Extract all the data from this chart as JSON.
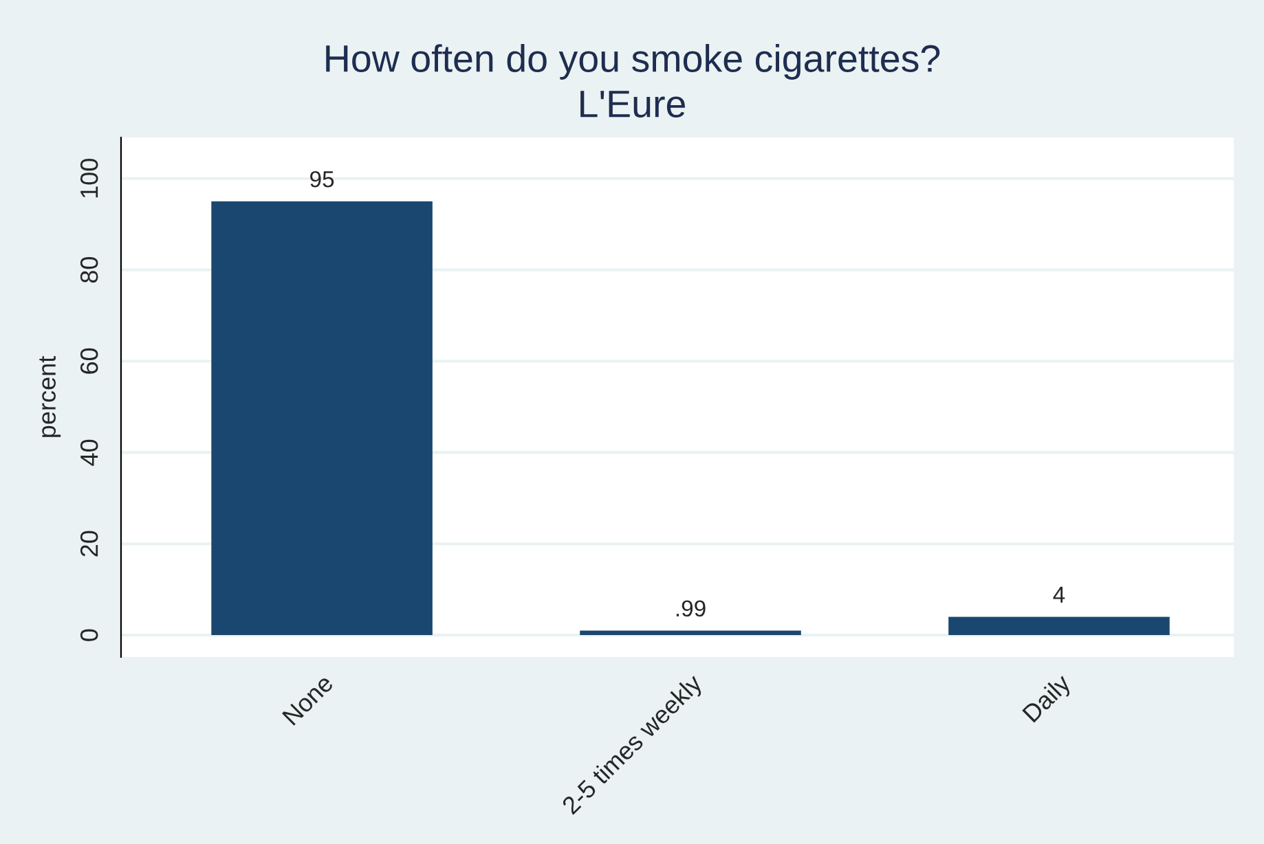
{
  "chart_data": {
    "type": "bar",
    "title": "How often do you smoke cigarettes?",
    "subtitle": "L'Eure",
    "ylabel": "percent",
    "categories": [
      "None",
      "2-5 times weekly",
      "Daily"
    ],
    "values": [
      95,
      0.99,
      4
    ],
    "value_labels": [
      "95",
      ".99",
      "4"
    ],
    "color": "#1a476f",
    "ylim": [
      -4.8,
      109
    ],
    "yticks": [
      0,
      20,
      40,
      60,
      80,
      100
    ],
    "grid": "y"
  }
}
